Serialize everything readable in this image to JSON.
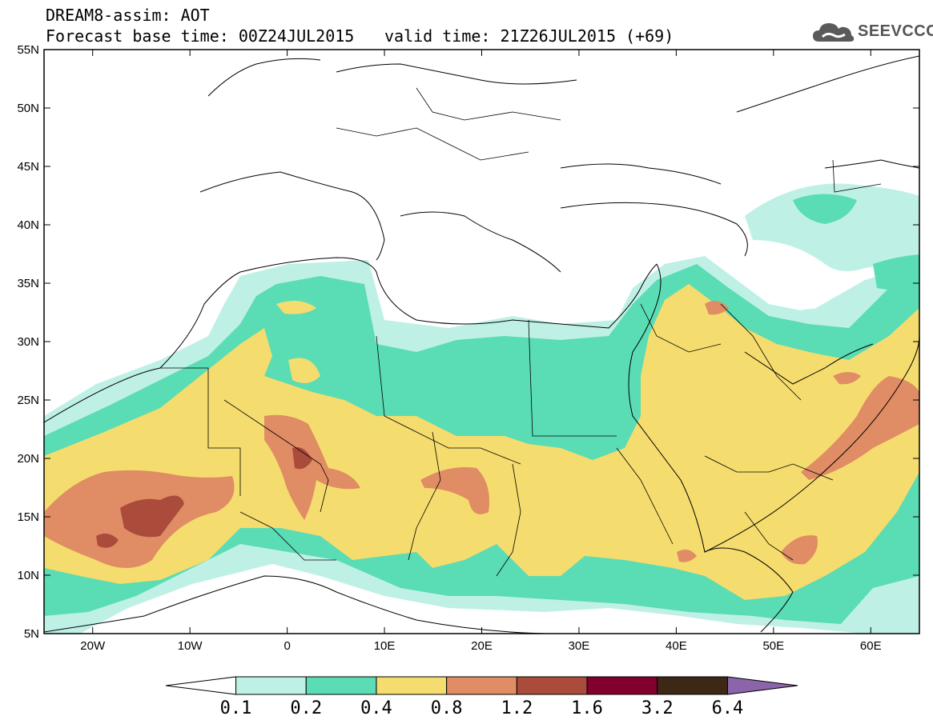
{
  "header": {
    "title": "DREAM8-assim: AOT",
    "base_time": "Forecast base time: 00Z24JUL2015",
    "valid_time": "valid time: 21Z26JUL2015 (+69)",
    "logo_text": "SEEVCCC",
    "logo_icon": "cloud-icon"
  },
  "map": {
    "lon_range": [
      -25,
      65
    ],
    "lat_range": [
      5,
      55
    ],
    "lat_labels": [
      "55N",
      "50N",
      "45N",
      "40N",
      "35N",
      "30N",
      "25N",
      "20N",
      "15N",
      "10N",
      "5N"
    ],
    "lon_labels": [
      "20W",
      "10W",
      "0",
      "10E",
      "20E",
      "30E",
      "40E",
      "50E",
      "60E"
    ]
  },
  "colorbar": {
    "labels": [
      "0.1",
      "0.2",
      "0.4",
      "0.8",
      "1.2",
      "1.6",
      "3.2",
      "6.4"
    ],
    "colors": [
      "#ffffff",
      "#bff0e6",
      "#5adcb4",
      "#f5dc6e",
      "#e08c64",
      "#aa4b3c",
      "#82002d",
      "#3c2814",
      "#8c64aa"
    ]
  }
}
